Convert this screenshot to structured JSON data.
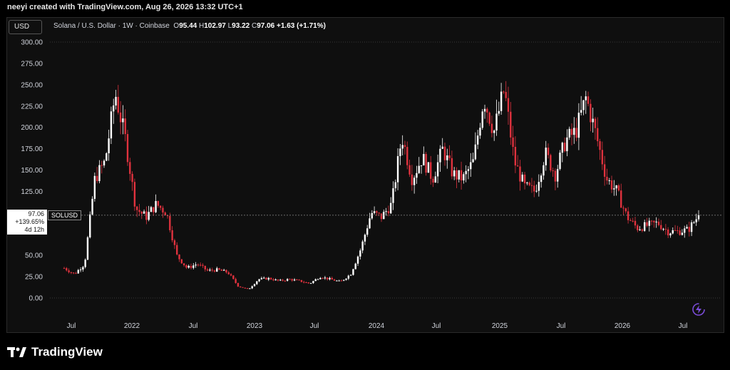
{
  "header": {
    "created_text": "neeyi created with TradingView.com, Aug 26, 2026 13:32 UTC+1"
  },
  "toolbar": {
    "currency_button": "USD"
  },
  "legend": {
    "symbol_text": "Solana / U.S. Dollar · 1W · Coinbase",
    "o_label": "O",
    "o_value": "95.44",
    "h_label": "H",
    "h_value": "102.97",
    "l_label": "L",
    "l_value": "93.22",
    "c_label": "C",
    "c_value": "97.06",
    "change": "+1.63 (+1.71%)"
  },
  "price_label": {
    "price": "97.06",
    "percent": "+139.65%",
    "countdown": "4d 12h",
    "symbol": "SOLUSD"
  },
  "brand": {
    "name": "TradingView"
  },
  "colors": {
    "up": "#ffffff",
    "down": "#e0323e",
    "background": "#0f0f0f",
    "grid": "#1e1e1e"
  },
  "icons": {
    "bolt": "lightning-icon",
    "logo": "tradingview-logo-icon"
  },
  "chart_data": {
    "type": "candlestick",
    "y_axis": {
      "ticks": [
        "300.00",
        "275.00",
        "250.00",
        "225.00",
        "200.00",
        "175.00",
        "150.00",
        "125.00",
        "50.00",
        "25.00",
        "0.00"
      ],
      "ylim": [
        0,
        300
      ]
    },
    "x_axis": {
      "ticks": [
        "Jul",
        "2022",
        "Jul",
        "2023",
        "Jul",
        "2024",
        "Jul",
        "2025",
        "Jul",
        "2026",
        "Jul"
      ]
    },
    "last_price": 97.06,
    "trend_points": [
      [
        "2021-06",
        35
      ],
      [
        "2021-07",
        28
      ],
      [
        "2021-08",
        40
      ],
      [
        "2021-09",
        140
      ],
      [
        "2021-10",
        160
      ],
      [
        "2021-11",
        240
      ],
      [
        "2021-12",
        185
      ],
      [
        "2022-01",
        105
      ],
      [
        "2022-02",
        95
      ],
      [
        "2022-03",
        110
      ],
      [
        "2022-04",
        100
      ],
      [
        "2022-05",
        50
      ],
      [
        "2022-06",
        35
      ],
      [
        "2022-07",
        40
      ],
      [
        "2022-08",
        32
      ],
      [
        "2022-09",
        33
      ],
      [
        "2022-10",
        30
      ],
      [
        "2022-11",
        14
      ],
      [
        "2022-12",
        10
      ],
      [
        "2023-01",
        22
      ],
      [
        "2023-02",
        23
      ],
      [
        "2023-03",
        20
      ],
      [
        "2023-04",
        22
      ],
      [
        "2023-05",
        20
      ],
      [
        "2023-06",
        17
      ],
      [
        "2023-07",
        25
      ],
      [
        "2023-08",
        22
      ],
      [
        "2023-09",
        19
      ],
      [
        "2023-10",
        28
      ],
      [
        "2023-11",
        58
      ],
      [
        "2023-12",
        100
      ],
      [
        "2024-01",
        95
      ],
      [
        "2024-02",
        110
      ],
      [
        "2024-03",
        190
      ],
      [
        "2024-04",
        140
      ],
      [
        "2024-05",
        165
      ],
      [
        "2024-06",
        140
      ],
      [
        "2024-07",
        175
      ],
      [
        "2024-08",
        145
      ],
      [
        "2024-09",
        140
      ],
      [
        "2024-10",
        160
      ],
      [
        "2024-11",
        235
      ],
      [
        "2024-12",
        195
      ],
      [
        "2025-01",
        245
      ],
      [
        "2025-02",
        160
      ],
      [
        "2025-03",
        130
      ],
      [
        "2025-04",
        125
      ],
      [
        "2025-05",
        170
      ],
      [
        "2025-06",
        145
      ],
      [
        "2025-07",
        185
      ],
      [
        "2025-08",
        195
      ],
      [
        "2025-09",
        235
      ],
      [
        "2025-10",
        190
      ],
      [
        "2025-11",
        140
      ],
      [
        "2025-12",
        125
      ],
      [
        "2026-01",
        95
      ],
      [
        "2026-02",
        82
      ],
      [
        "2026-03",
        85
      ],
      [
        "2026-04",
        88
      ],
      [
        "2026-05",
        78
      ],
      [
        "2026-06",
        78
      ],
      [
        "2026-07",
        80
      ],
      [
        "2026-08",
        97
      ]
    ]
  }
}
